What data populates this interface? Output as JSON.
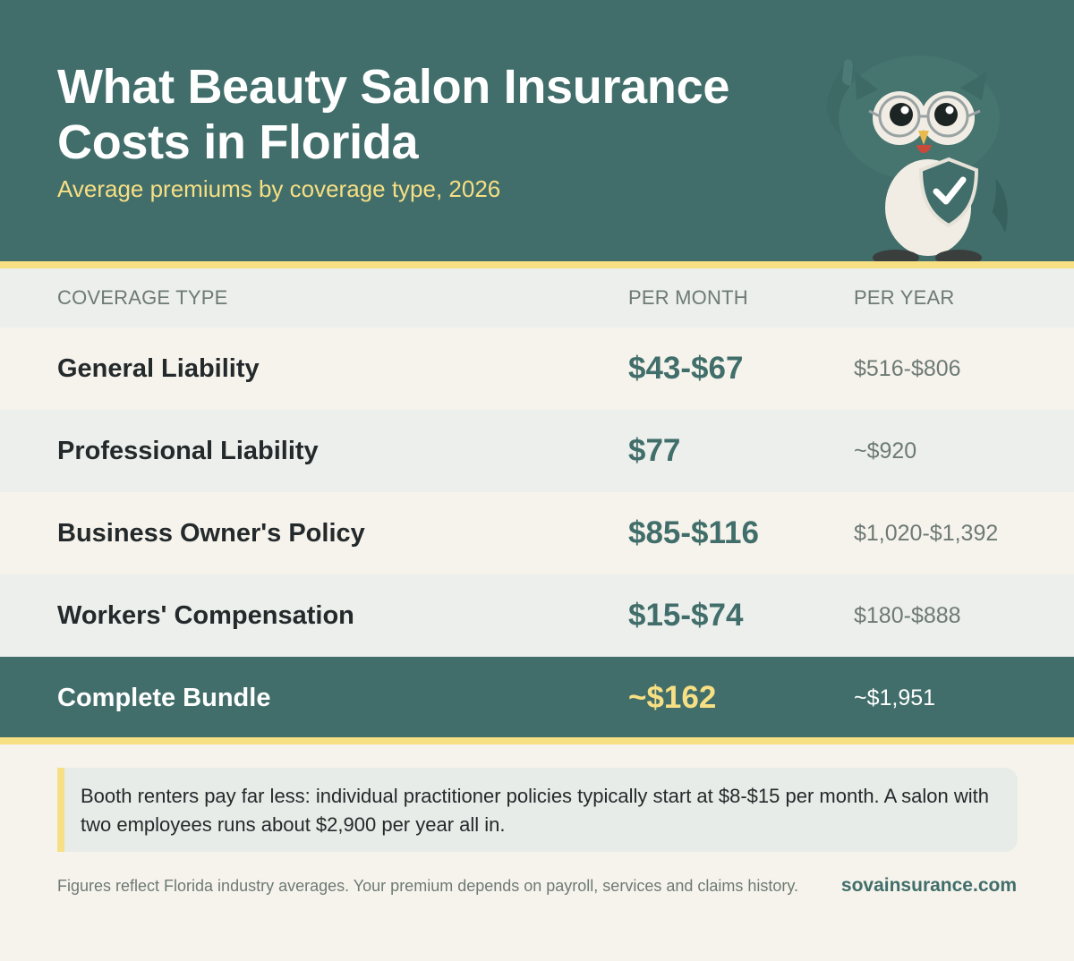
{
  "header": {
    "title": "What Beauty Salon Insurance Costs in Florida",
    "subtitle": "Average premiums by coverage type, 2026"
  },
  "table": {
    "columns": [
      "COVERAGE TYPE",
      "PER MONTH",
      "PER YEAR"
    ],
    "rows": [
      {
        "name": "General Liability",
        "month": "$43-$67",
        "year": "$516-$806"
      },
      {
        "name": "Professional Liability",
        "month": "$77",
        "year": "~$920"
      },
      {
        "name": "Business Owner's Policy",
        "month": "$85-$116",
        "year": "$1,020-$1,392"
      },
      {
        "name": "Workers' Compensation",
        "month": "$15-$74",
        "year": "$180-$888"
      }
    ],
    "bundle": {
      "name": "Complete Bundle",
      "month": "~$162",
      "year": "~$1,951"
    }
  },
  "note": {
    "text": "Booth renters pay far less: individual practitioner policies typically start at $8-$15 per month. A salon with two employees runs about $2,900 per year all in."
  },
  "footer": {
    "disclaimer": "Figures reflect Florida industry averages. Your premium depends on payroll, services and claims history.",
    "site": "sovainsurance.com"
  },
  "colors": {
    "primary": "#416e6a",
    "accent": "#f7df84",
    "background": "#f6f3ec",
    "row_alt": "#ecefeb",
    "text_dark": "#24292b",
    "text_muted": "#6e7a75"
  },
  "icons": {
    "mascot": "owl-mascot-icon",
    "shield": "shield-check-icon"
  }
}
